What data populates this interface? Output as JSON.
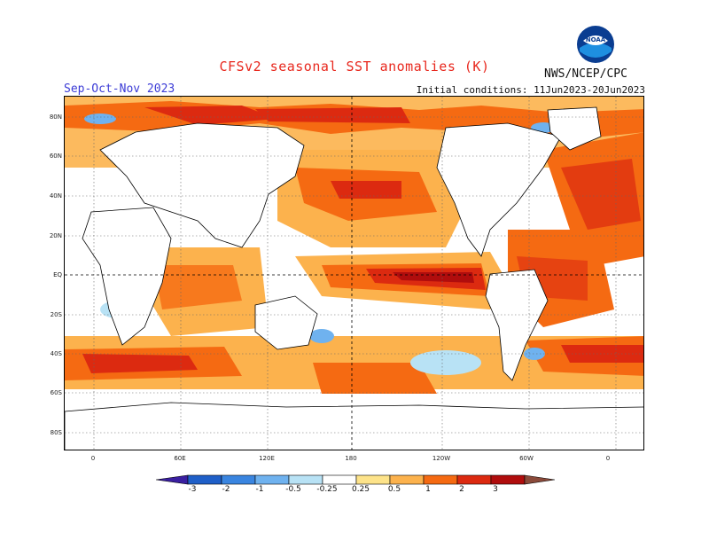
{
  "header": {
    "title": "CFSv2 seasonal SST anomalies (K)",
    "season": "Sep-Oct-Nov 2023",
    "initial_conditions": "Initial conditions: 11Jun2023-20Jun2023",
    "agency": "NWS/NCEP/CPC",
    "logo_text": "NOAA"
  },
  "map": {
    "lat_labels": [
      "80N",
      "60N",
      "40N",
      "20N",
      "EQ",
      "20S",
      "40S",
      "60S",
      "80S"
    ],
    "lon_labels": [
      "0",
      "60E",
      "120E",
      "180",
      "120W",
      "60W",
      "0"
    ]
  },
  "colorbar": {
    "tick_labels": [
      "-3",
      "-2",
      "-1",
      "-0.5",
      "-0.25",
      "0.25",
      "0.5",
      "1",
      "2",
      "3"
    ],
    "colors": [
      "#3a1fa0",
      "#1f5fc8",
      "#3a85e0",
      "#6fb2ef",
      "#b8e2f5",
      "#ffffff",
      "#fde38a",
      "#fcb24d",
      "#f56a12",
      "#dc2a10",
      "#b00d0d",
      "#8a4a3a"
    ]
  }
}
